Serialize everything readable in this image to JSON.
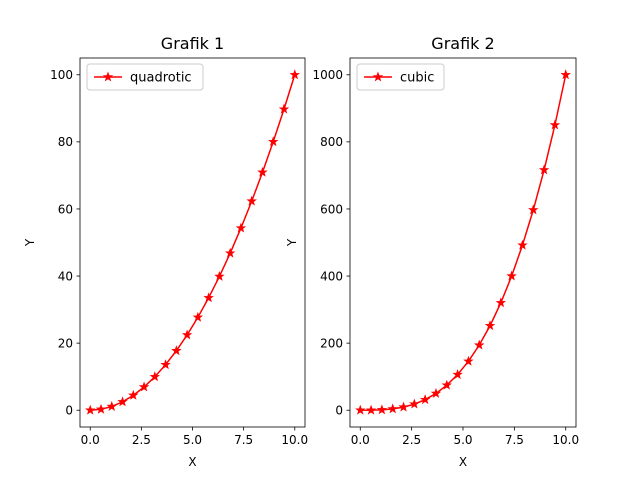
{
  "chart_data": [
    {
      "type": "line",
      "title": "Grafik 1",
      "xlabel": "X",
      "ylabel": "Y",
      "xlim": [
        -0.5,
        10.5
      ],
      "ylim": [
        -5,
        105
      ],
      "xticks": [
        0,
        2.5,
        5,
        7.5,
        10
      ],
      "xtick_labels": [
        "0.0",
        "2.5",
        "5.0",
        "7.5",
        "10.0"
      ],
      "yticks": [
        0,
        20,
        40,
        60,
        80,
        100
      ],
      "ytick_labels": [
        "0",
        "20",
        "40",
        "60",
        "80",
        "100"
      ],
      "legend_position": "upper-left",
      "grid": false,
      "series": [
        {
          "name": "quadrotic",
          "color": "#ff0000",
          "marker": "star",
          "x": [
            0,
            0.5263,
            1.0526,
            1.5789,
            2.1053,
            2.6316,
            3.1579,
            3.6842,
            4.2105,
            4.7368,
            5.2632,
            5.7895,
            6.3158,
            6.8421,
            7.3684,
            7.8947,
            8.4211,
            8.9474,
            9.4737,
            10
          ],
          "y": [
            0,
            0.277,
            1.108,
            2.493,
            4.432,
            6.925,
            9.972,
            13.573,
            17.729,
            22.438,
            27.701,
            33.518,
            39.889,
            46.814,
            54.294,
            62.327,
            70.914,
            80.055,
            89.751,
            100
          ]
        }
      ]
    },
    {
      "type": "line",
      "title": "Grafik 2",
      "xlabel": "X",
      "ylabel": "Y",
      "xlim": [
        -0.5,
        10.5
      ],
      "ylim": [
        -50,
        1050
      ],
      "xticks": [
        0,
        2.5,
        5,
        7.5,
        10
      ],
      "xtick_labels": [
        "0.0",
        "2.5",
        "5.0",
        "7.5",
        "10.0"
      ],
      "yticks": [
        0,
        200,
        400,
        600,
        800,
        1000
      ],
      "ytick_labels": [
        "0",
        "200",
        "400",
        "600",
        "800",
        "1000"
      ],
      "legend_position": "upper-left",
      "grid": false,
      "series": [
        {
          "name": "cubic",
          "color": "#ff0000",
          "marker": "star",
          "x": [
            0,
            0.5263,
            1.0526,
            1.5789,
            2.1053,
            2.6316,
            3.1579,
            3.6842,
            4.2105,
            4.7368,
            5.2632,
            5.7895,
            6.3158,
            6.8421,
            7.3684,
            7.8947,
            8.4211,
            8.9474,
            9.4737,
            10
          ],
          "y": [
            0,
            0.146,
            1.166,
            3.936,
            9.331,
            18.224,
            31.491,
            50.007,
            74.646,
            106.284,
            145.794,
            194.052,
            251.931,
            320.309,
            400.058,
            492.055,
            597.172,
            716.287,
            850.273,
            1000
          ]
        }
      ]
    }
  ]
}
